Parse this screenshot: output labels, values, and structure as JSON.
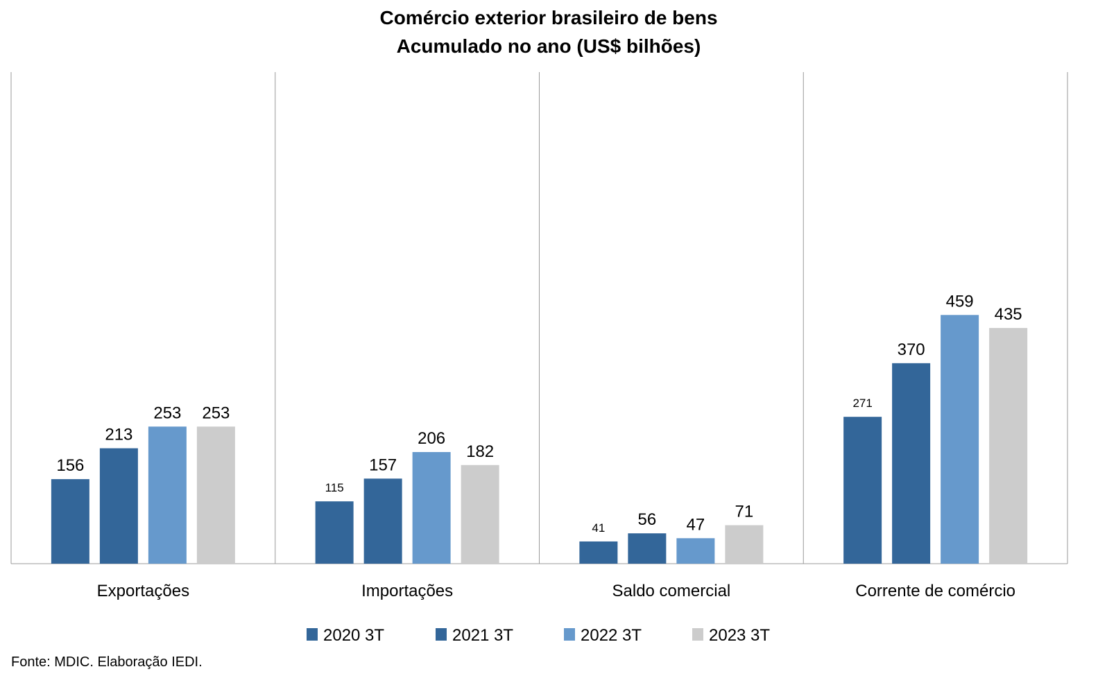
{
  "chart_data": {
    "type": "bar",
    "title": "Comércio exterior brasileiro de bens",
    "subtitle": "Acumulado no ano (US$ bilhões)",
    "categories": [
      "Exportações",
      "Importações",
      "Saldo comercial",
      "Corrente de comércio"
    ],
    "series": [
      {
        "name": "2020 3T",
        "color": "#336699",
        "values": [
          156,
          115,
          41,
          271
        ]
      },
      {
        "name": "2021 3T",
        "color": "#336699",
        "values": [
          213,
          157,
          56,
          370
        ]
      },
      {
        "name": "2022 3T",
        "color": "#6699CC",
        "values": [
          253,
          206,
          47,
          459
        ]
      },
      {
        "name": "2023 3T",
        "color": "#CCCCCC",
        "values": [
          253,
          182,
          71,
          435
        ]
      }
    ],
    "ylim": [
      0,
      500
    ],
    "grid": false,
    "legend_position": "bottom",
    "xlabel": "",
    "ylabel": ""
  },
  "source": "Fonte: MDIC. Elaboração IEDI."
}
